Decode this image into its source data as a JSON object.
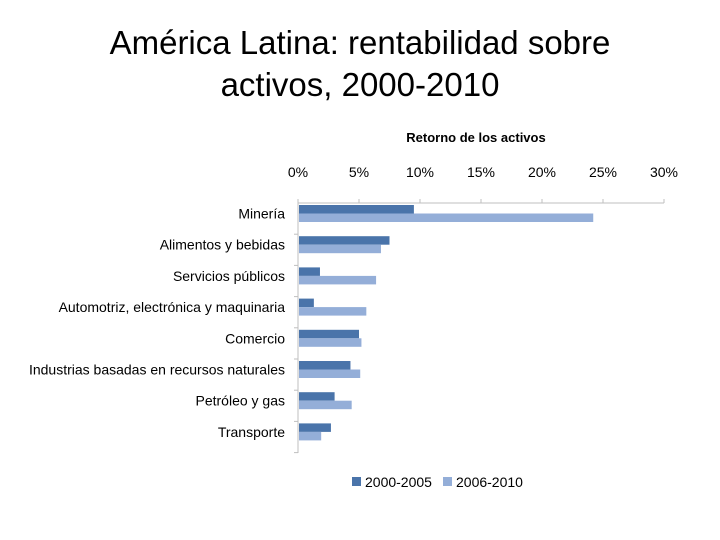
{
  "slide": {
    "title_line1": "América Latina: rentabilidad sobre",
    "title_line2": "activos, 2000-2010"
  },
  "chart_data": {
    "type": "bar",
    "orientation": "horizontal",
    "title": "Retorno de los activos",
    "xlabel": "",
    "ylabel": "",
    "xlim": [
      0,
      30
    ],
    "ticks": [
      "0%",
      "5%",
      "10%",
      "15%",
      "20%",
      "25%",
      "30%"
    ],
    "tick_values": [
      0,
      5,
      10,
      15,
      20,
      25,
      30
    ],
    "axis_position": "top",
    "grid": false,
    "legend_position": "bottom",
    "categories": [
      "Minería",
      "Alimentos y bebidas",
      "Servicios públicos",
      "Automotriz, electrónica y maquinaria",
      "Comercio",
      "Industrias basadas en recursos naturales",
      "Petróleo y gas",
      "Transporte"
    ],
    "series": [
      {
        "name": "2000-2005",
        "color": "#4a74aa",
        "values": [
          9.5,
          7.5,
          1.8,
          1.3,
          5.0,
          4.3,
          3.0,
          2.7
        ]
      },
      {
        "name": "2006-2010",
        "color": "#94aed8",
        "values": [
          24.2,
          6.8,
          6.4,
          5.6,
          5.2,
          5.1,
          4.4,
          1.9
        ]
      }
    ]
  }
}
